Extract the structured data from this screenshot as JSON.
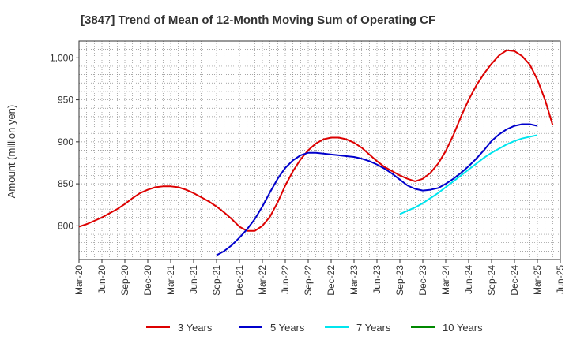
{
  "chart_data": {
    "type": "line",
    "title": "[3847]  Trend of Mean of 12-Month Moving Sum of Operating CF",
    "xlabel": "",
    "ylabel": "Amount (million yen)",
    "ylim": [
      760,
      1020
    ],
    "yticks": [
      800,
      850,
      900,
      950,
      1000
    ],
    "ytick_labels": [
      "800",
      "850",
      "900",
      "950",
      "1,000"
    ],
    "x_start": "Mar-20",
    "x_ticks": [
      "Mar-20",
      "Jun-20",
      "Sep-20",
      "Dec-20",
      "Mar-21",
      "Jun-21",
      "Sep-21",
      "Dec-21",
      "Mar-22",
      "Jun-22",
      "Sep-22",
      "Dec-22",
      "Mar-23",
      "Jun-23",
      "Sep-23",
      "Dec-23",
      "Mar-24",
      "Jun-24",
      "Sep-24",
      "Dec-24",
      "Mar-25",
      "Jun-25"
    ],
    "legend_position": "bottom",
    "series": [
      {
        "name": "3 Years",
        "color": "#dd0000",
        "start_month": 0,
        "values": [
          799,
          802,
          806,
          810,
          815,
          820,
          826,
          833,
          839,
          843,
          846,
          847,
          847,
          846,
          843,
          839,
          834,
          829,
          823,
          816,
          808,
          799,
          794,
          794,
          800,
          811,
          828,
          848,
          865,
          879,
          890,
          898,
          903,
          905,
          905,
          903,
          899,
          893,
          885,
          877,
          870,
          865,
          860,
          856,
          853,
          856,
          863,
          874,
          889,
          908,
          930,
          950,
          967,
          981,
          993,
          1003,
          1009,
          1008,
          1002,
          992,
          974,
          950,
          920
        ]
      },
      {
        "name": "5 Years",
        "color": "#0000cc",
        "start_month": 18,
        "values": [
          765,
          770,
          777,
          786,
          796,
          808,
          823,
          840,
          856,
          869,
          878,
          884,
          887,
          887,
          886,
          885,
          884,
          883,
          882,
          880,
          877,
          873,
          868,
          862,
          855,
          848,
          844,
          842,
          843,
          845,
          850,
          856,
          863,
          871,
          880,
          890,
          901,
          909,
          915,
          919,
          921,
          921,
          919
        ]
      },
      {
        "name": "7 Years",
        "color": "#00e5ee",
        "start_month": 42,
        "values": [
          814,
          818,
          822,
          827,
          833,
          839,
          846,
          853,
          860,
          867,
          874,
          881,
          887,
          892,
          897,
          901,
          904,
          906,
          908
        ]
      },
      {
        "name": "10 Years",
        "color": "#008800",
        "start_month": null,
        "values": []
      }
    ]
  }
}
